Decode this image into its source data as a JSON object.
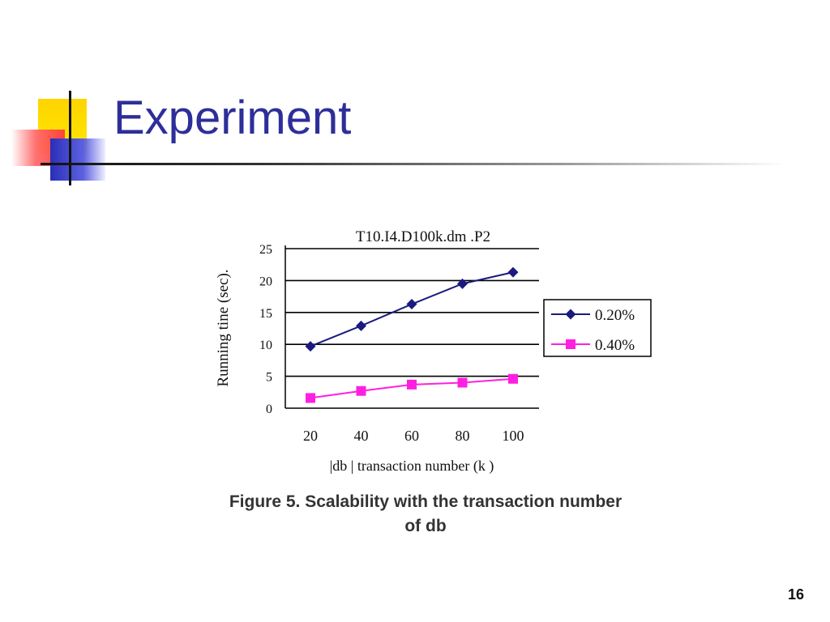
{
  "slide": {
    "title": "Experiment",
    "page_number": "16",
    "caption_line1": "Figure 5. Scalability with the transaction number",
    "caption_line2": "of db"
  },
  "colors": {
    "title": "#2e2e9a",
    "series_020": "#1a1a80",
    "series_040": "#ff1fe0"
  },
  "chart_data": {
    "type": "line",
    "title": "T10.I4.D100k.dm .P2",
    "xlabel": "|db | transaction number (k )",
    "ylabel": "Running tine (sec).",
    "x": [
      20,
      40,
      60,
      80,
      100
    ],
    "ylim": [
      0,
      25
    ],
    "yticks": [
      0,
      5,
      10,
      15,
      20,
      25
    ],
    "grid": true,
    "legend_position": "right",
    "series": [
      {
        "name": "0.20%",
        "marker": "diamond",
        "values": [
          9.7,
          12.9,
          16.3,
          19.5,
          21.3
        ]
      },
      {
        "name": "0.40%",
        "marker": "square",
        "values": [
          1.6,
          2.7,
          3.7,
          4.0,
          4.6
        ]
      }
    ]
  }
}
